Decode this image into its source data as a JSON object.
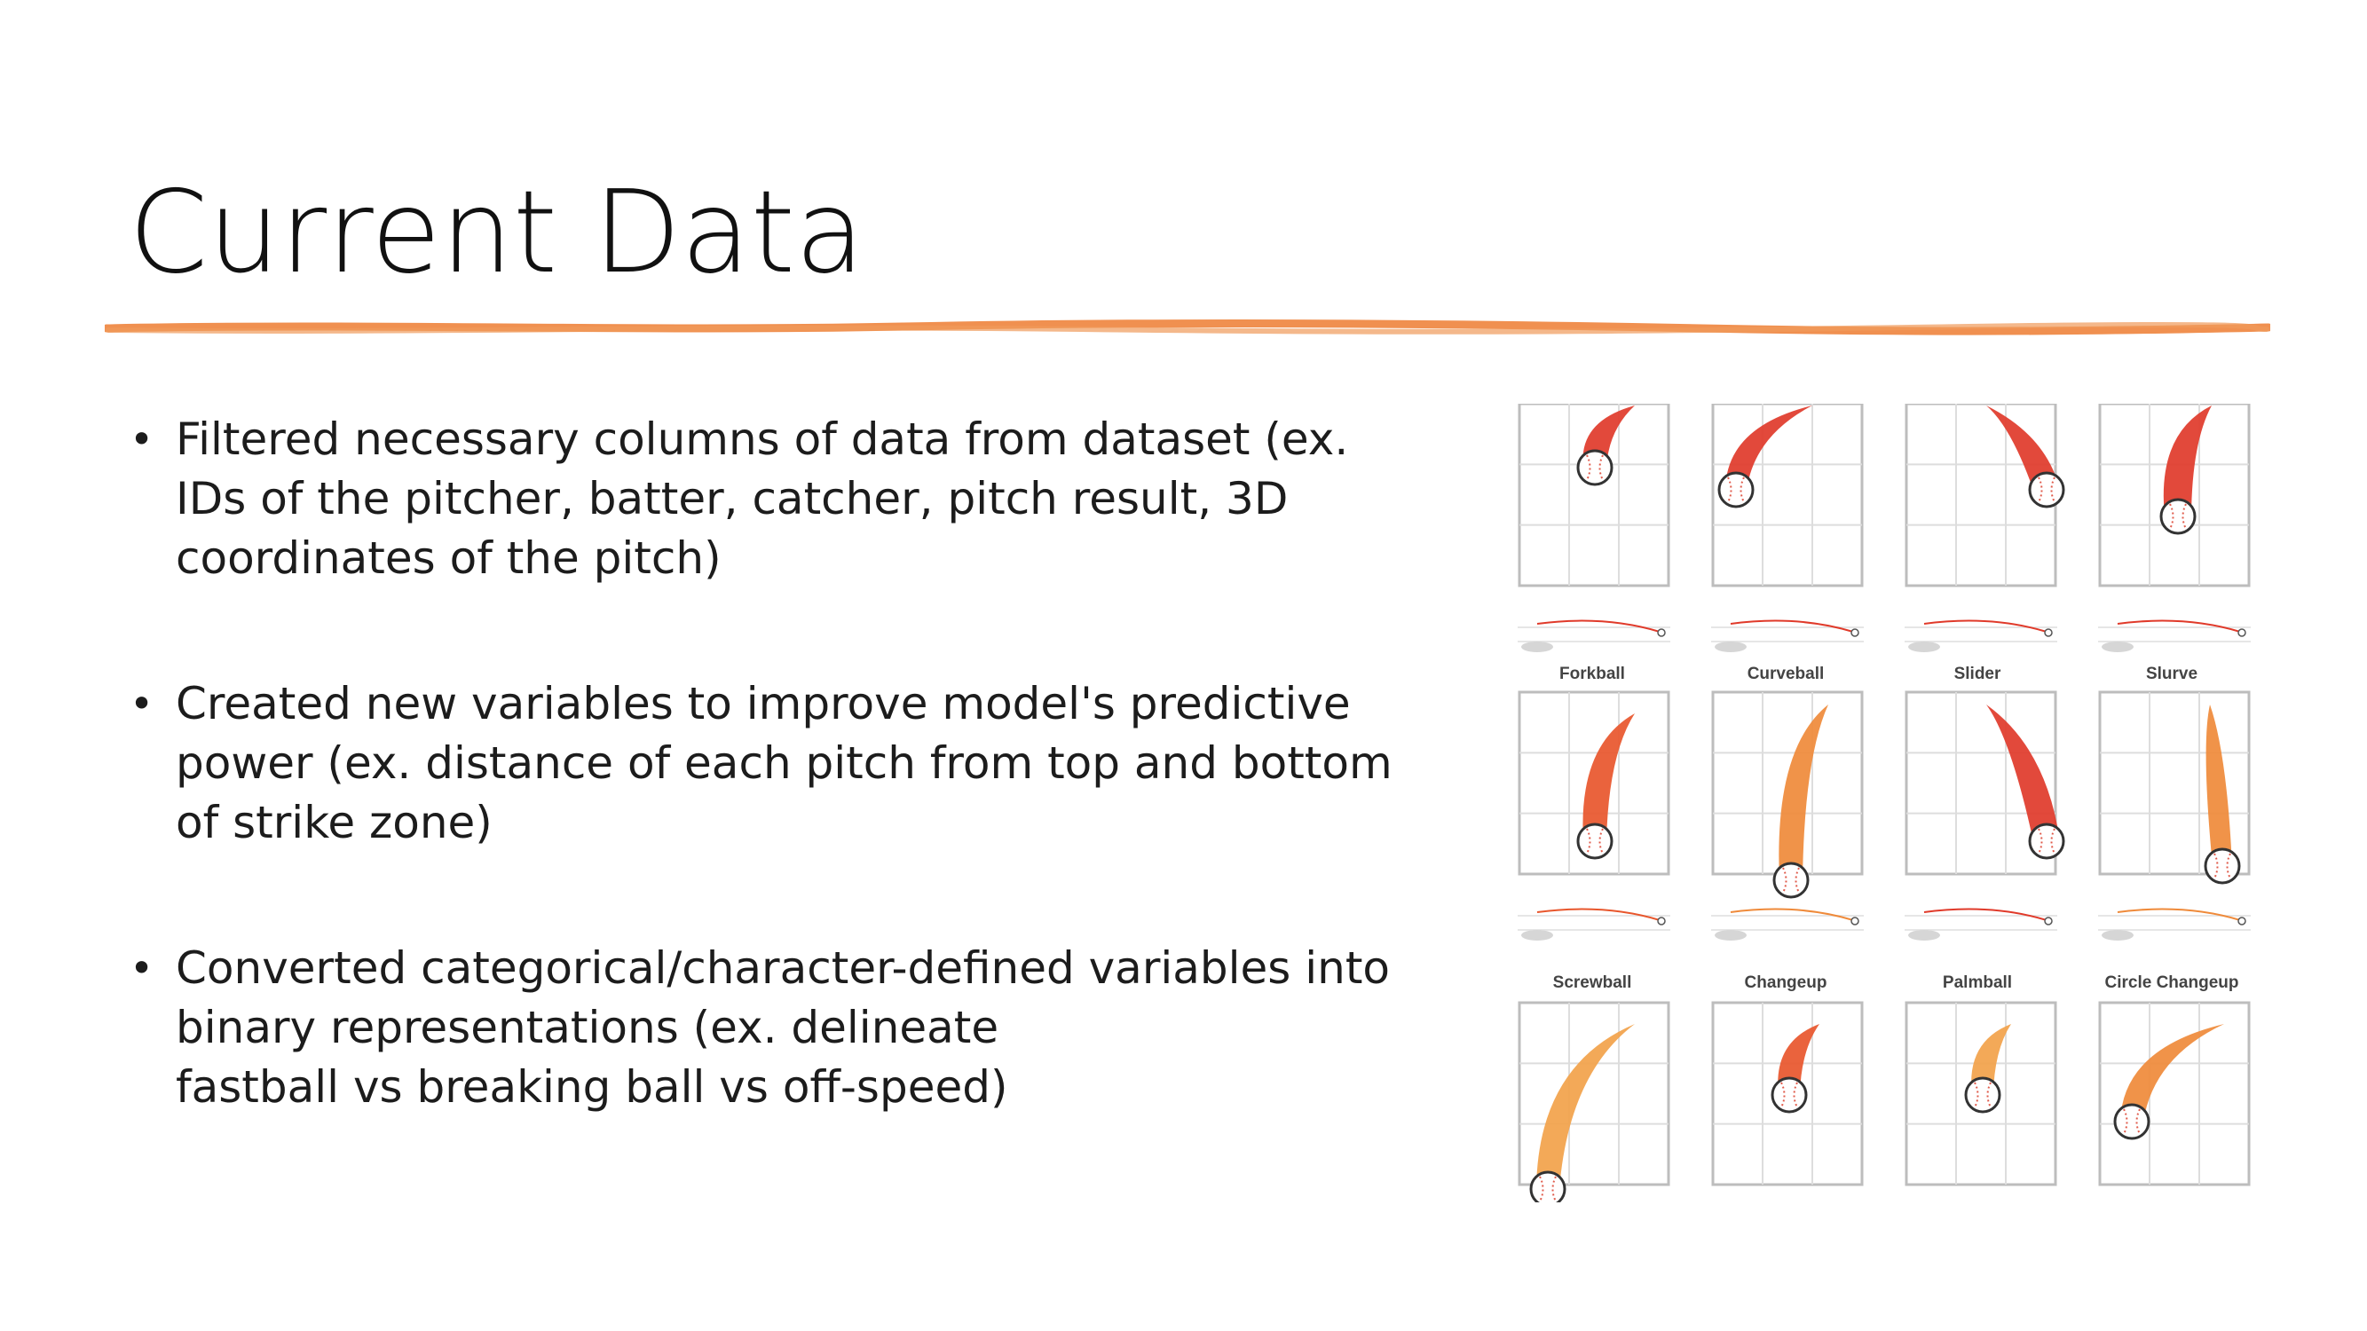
{
  "slide": {
    "title": "Current Data",
    "accent_color": "#ED7D31",
    "bullets": [
      {
        "text": "Filtered necessary columns of data from dataset (ex.\nIDs of the pitcher, batter, catcher, pitch result, 3D\ncoordinates of the pitch)"
      },
      {
        "text": "Created new variables to improve model's predictive\npower (ex. distance of each pitch from top and bottom\nof strike zone)"
      },
      {
        "text": "Converted categorical/character-defined variables into\nbinary representations (ex. delineate\nfastball vs breaking ball vs off-speed)"
      }
    ],
    "bullet_glyph": "•"
  },
  "pitch_image": {
    "labels_row2": [
      "Forkball",
      "Curveball",
      "Slider",
      "Slurve"
    ],
    "labels_row3": [
      "Screwball",
      "Changeup",
      "Palmball",
      "Circle Changeup"
    ],
    "colors": {
      "red": "#E03A2A",
      "red_orange": "#E8562C",
      "orange": "#EF8A3A",
      "light_orange": "#F2A24A"
    }
  }
}
